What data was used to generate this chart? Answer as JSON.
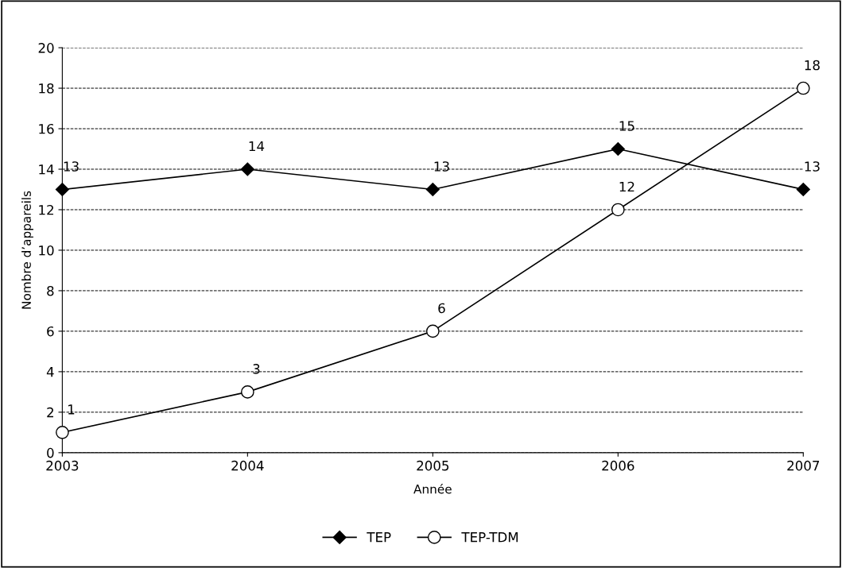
{
  "chart_data": {
    "type": "line",
    "xlabel": "Année",
    "ylabel": "Nombre d’appareils",
    "x": [
      2003,
      2004,
      2005,
      2006,
      2007
    ],
    "series": [
      {
        "name": "TEP",
        "color": "#000000",
        "marker": "diamond",
        "values": [
          13,
          14,
          13,
          15,
          13
        ]
      },
      {
        "name": "TEP-TDM",
        "color": "#000000",
        "marker": "circle",
        "values": [
          1,
          3,
          6,
          12,
          18
        ]
      }
    ],
    "xlim": [
      2003,
      2007
    ],
    "xticks": [
      2003,
      2004,
      2005,
      2006,
      2007
    ],
    "ylim": [
      0,
      20
    ],
    "yticks": [
      0,
      2,
      4,
      6,
      8,
      10,
      12,
      14,
      16,
      18,
      20
    ],
    "grid": "y",
    "legend": "bottom",
    "data_labels": true,
    "line_style": "solid"
  }
}
